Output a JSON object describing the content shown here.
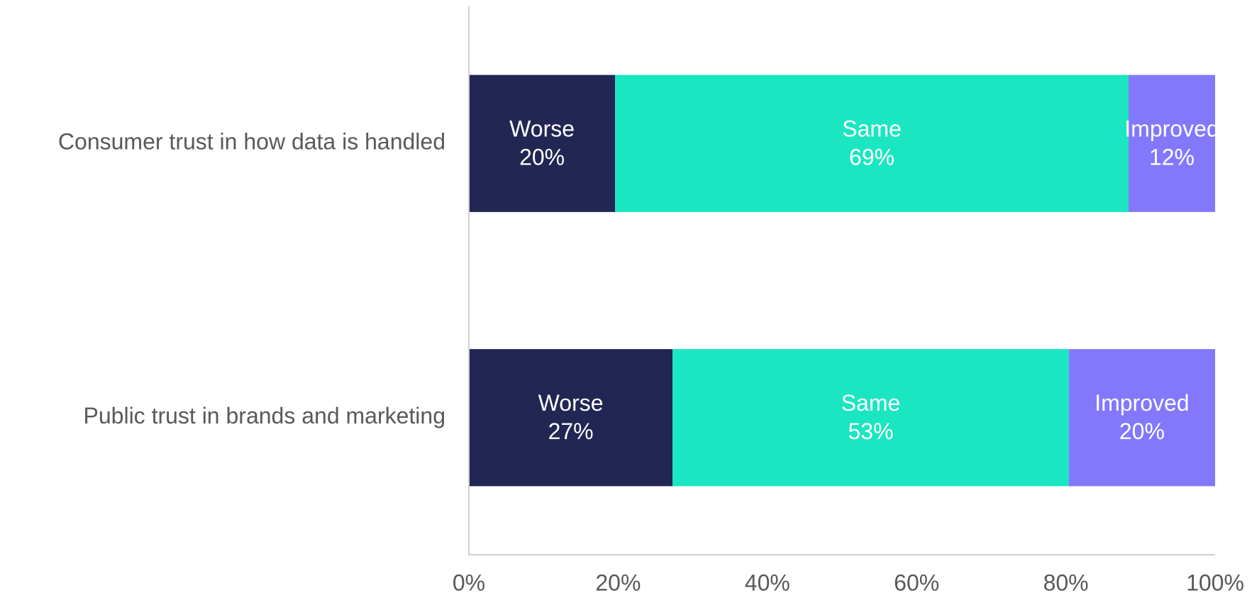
{
  "chart_data": {
    "type": "stacked_barh",
    "categories": [
      "Consumer trust in how data is handled",
      "Public trust in brands and marketing"
    ],
    "series": [
      {
        "name": "Worse",
        "color": "#212653",
        "values": [
          19.6,
          27.3
        ],
        "value_labels": [
          "20%",
          "27%"
        ]
      },
      {
        "name": "Same",
        "color": "#1ae6c1",
        "values": [
          68.8,
          53.1
        ],
        "value_labels": [
          "69%",
          "53%"
        ]
      },
      {
        "name": "Improved",
        "color": "#8378fc",
        "values": [
          11.6,
          19.6
        ],
        "value_labels": [
          "12%",
          "20%"
        ]
      }
    ],
    "xlim": [
      0,
      100
    ],
    "xticks": [
      {
        "value": 0,
        "label": "0%"
      },
      {
        "value": 20,
        "label": "20%"
      },
      {
        "value": 40,
        "label": "40%"
      },
      {
        "value": 60,
        "label": "60%"
      },
      {
        "value": 80,
        "label": "80%"
      },
      {
        "value": 100,
        "label": "100%"
      }
    ]
  }
}
